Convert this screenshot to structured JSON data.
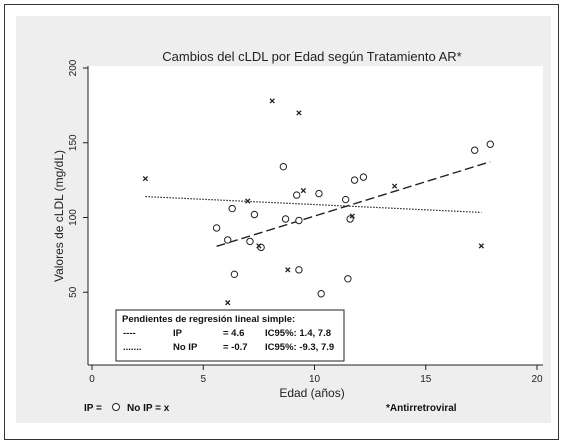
{
  "chart_data": {
    "type": "scatter",
    "title": "Cambios del cLDL por Edad según Tratamiento AR*",
    "xlabel": "Edad (años)",
    "ylabel": "Valores de cLDL (mg/dL)",
    "xlim": [
      0,
      20
    ],
    "ylim": [
      0,
      200
    ],
    "xticks": [
      0,
      5,
      10,
      15,
      20
    ],
    "yticks": [
      50,
      100,
      150,
      200
    ],
    "grid": false,
    "series": [
      {
        "name": "IP",
        "marker": "circle",
        "points": [
          [
            5.6,
            93
          ],
          [
            6.1,
            85
          ],
          [
            6.3,
            106
          ],
          [
            6.4,
            62
          ],
          [
            7.1,
            84
          ],
          [
            7.3,
            102
          ],
          [
            7.6,
            80
          ],
          [
            8.6,
            134
          ],
          [
            8.7,
            99
          ],
          [
            9.2,
            115
          ],
          [
            9.3,
            98
          ],
          [
            9.3,
            65
          ],
          [
            10.2,
            116
          ],
          [
            10.3,
            49
          ],
          [
            11.4,
            112
          ],
          [
            11.5,
            59
          ],
          [
            11.6,
            99
          ],
          [
            11.8,
            125
          ],
          [
            12.2,
            127
          ],
          [
            17.2,
            145
          ],
          [
            17.9,
            149
          ]
        ]
      },
      {
        "name": "No IP",
        "marker": "x",
        "points": [
          [
            2.4,
            126
          ],
          [
            6.1,
            43
          ],
          [
            7.0,
            111
          ],
          [
            7.5,
            81
          ],
          [
            8.1,
            178
          ],
          [
            8.8,
            65
          ],
          [
            9.3,
            170
          ],
          [
            9.5,
            118
          ],
          [
            11.7,
            101
          ],
          [
            13.6,
            121
          ],
          [
            17.5,
            81
          ]
        ]
      }
    ],
    "fits": [
      {
        "name": "IP",
        "style": "dashed",
        "x": [
          5.6,
          17.9
        ],
        "y": [
          80.7,
          137.3
        ]
      },
      {
        "name": "No IP",
        "style": "dotted",
        "x": [
          2.4,
          17.5
        ],
        "y": [
          114.0,
          103.4
        ]
      }
    ],
    "legend_box": {
      "title": "Pendientes de regresión lineal simple:",
      "rows": [
        {
          "line": "----",
          "label": "IP",
          "eq": "= 4.6",
          "ci": "IC95%: 1.4, 7.8"
        },
        {
          "line": ".......",
          "label": "No IP",
          "eq": "= -0.7",
          "ci": "IC95%: -9.3, 7.9"
        }
      ],
      "placement": "bottom-left"
    },
    "footer": {
      "ip_text": "IP =",
      "noip_text": "No IP = x",
      "note": "*Antirretroviral"
    },
    "colors": {
      "background": "#eeeeee",
      "plot": "#ffffff",
      "marks": "#222222"
    }
  }
}
